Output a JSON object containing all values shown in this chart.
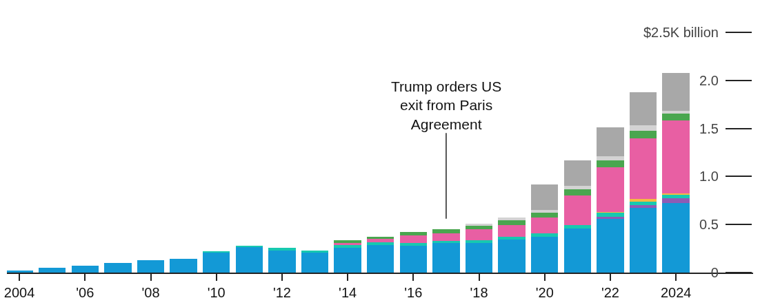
{
  "chart_data": {
    "type": "bar",
    "stacked": true,
    "categories": [
      "2004",
      null,
      "'06",
      null,
      "'08",
      null,
      "'10",
      null,
      "'12",
      null,
      "'14",
      null,
      "'16",
      null,
      "'18",
      null,
      "'20",
      null,
      "'22",
      null,
      "2024"
    ],
    "series": [
      {
        "color": "#1399d6",
        "values": [
          0.025,
          0.05,
          0.075,
          0.1,
          0.13,
          0.145,
          0.21,
          0.265,
          0.23,
          0.21,
          0.26,
          0.285,
          0.28,
          0.305,
          0.305,
          0.345,
          0.37,
          0.455,
          0.56,
          0.67,
          0.72
        ]
      },
      {
        "color": "#8e5bb5",
        "values": [
          null,
          null,
          null,
          null,
          null,
          null,
          null,
          null,
          null,
          null,
          null,
          null,
          null,
          null,
          null,
          null,
          null,
          null,
          0.02,
          0.035,
          0.055
        ]
      },
      {
        "color": "#17c9b0",
        "values": [
          null,
          null,
          null,
          null,
          null,
          null,
          0.015,
          0.015,
          0.025,
          0.02,
          0.025,
          0.03,
          0.03,
          0.025,
          0.03,
          0.03,
          0.04,
          0.04,
          0.04,
          0.035,
          0.035
        ]
      },
      {
        "color": "#f5b942",
        "values": [
          null,
          null,
          null,
          null,
          null,
          null,
          null,
          null,
          null,
          null,
          null,
          null,
          null,
          null,
          null,
          null,
          null,
          null,
          0.01,
          0.03,
          0.015
        ]
      },
      {
        "color": "#e85fa3",
        "values": [
          null,
          null,
          null,
          null,
          null,
          null,
          null,
          null,
          null,
          null,
          0.02,
          0.035,
          0.075,
          0.075,
          0.115,
          0.12,
          0.165,
          0.305,
          0.465,
          0.63,
          0.755
        ]
      },
      {
        "color": "#4aa64f",
        "values": [
          null,
          null,
          null,
          null,
          null,
          null,
          null,
          null,
          null,
          null,
          0.03,
          0.025,
          0.035,
          0.045,
          0.04,
          0.05,
          0.05,
          0.07,
          0.075,
          0.075,
          0.075
        ]
      },
      {
        "color": "#d3d3d3",
        "values": [
          null,
          null,
          null,
          null,
          null,
          null,
          null,
          null,
          null,
          null,
          null,
          null,
          null,
          null,
          0.02,
          0.025,
          0.03,
          0.03,
          0.04,
          0.06,
          0.03
        ]
      },
      {
        "color": "#a8a8a8",
        "values": [
          null,
          null,
          null,
          null,
          null,
          null,
          null,
          null,
          null,
          null,
          null,
          null,
          null,
          null,
          null,
          null,
          0.265,
          0.27,
          0.3,
          0.34,
          0.395
        ]
      }
    ],
    "ylim": [
      0,
      2.5
    ],
    "yticks": [
      0,
      0.5,
      {
        "value": 1,
        "label": "1.0"
      },
      1.5,
      {
        "value": 2,
        "label": "2.0"
      },
      {
        "value": 2.5,
        "label": "$2.5K billion"
      }
    ],
    "annotations": [
      "Trump orders US\nexit from Paris\nAgreement"
    ]
  }
}
